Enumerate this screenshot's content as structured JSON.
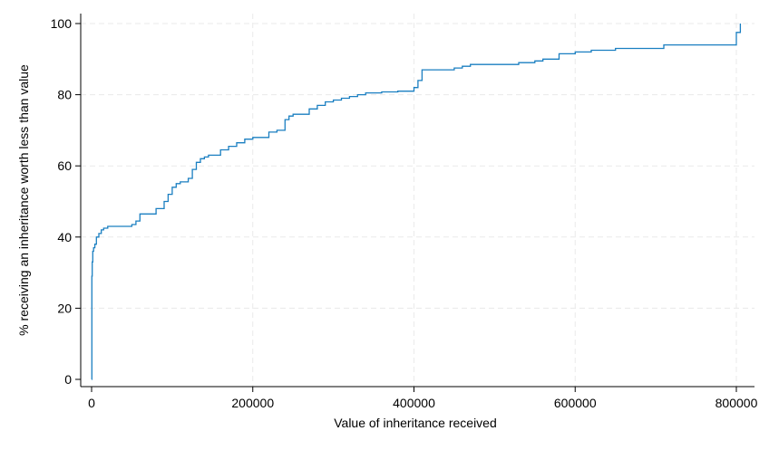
{
  "chart_data": {
    "type": "line",
    "step": true,
    "title": "",
    "xlabel": "Value of inheritance received",
    "ylabel": "% receiving an inheritance worth less than value",
    "xlim": [
      0,
      800000
    ],
    "ylim": [
      0,
      100
    ],
    "x_ticks": [
      0,
      200000,
      400000,
      600000,
      800000
    ],
    "x_tick_labels": [
      "0",
      "200000",
      "400000",
      "600000",
      "800000"
    ],
    "y_ticks": [
      0,
      20,
      40,
      60,
      80,
      100
    ],
    "y_tick_labels": [
      "0",
      "20",
      "40",
      "60",
      "80",
      "100"
    ],
    "grid": true,
    "legend": "none",
    "colors": {
      "series": "#1a7fc1",
      "grid": "#eaeaea",
      "axis": "#000000"
    },
    "series": [
      {
        "x": [
          0,
          300,
          800,
          1500,
          2500,
          4000,
          6000,
          9000,
          12000,
          15000,
          20000,
          50000,
          55000,
          60000,
          80000,
          90000,
          95000,
          100000,
          105000,
          110000,
          120000,
          125000,
          130000,
          135000,
          140000,
          145000,
          160000,
          170000,
          180000,
          190000,
          200000,
          220000,
          230000,
          240000,
          245000,
          250000,
          270000,
          280000,
          290000,
          300000,
          310000,
          320000,
          330000,
          340000,
          360000,
          380000,
          400000,
          405000,
          410000,
          450000,
          460000,
          470000,
          500000,
          530000,
          550000,
          560000,
          580000,
          600000,
          620000,
          650000,
          700000,
          710000,
          780000,
          800000,
          805000
        ],
        "y": [
          0,
          29,
          33,
          36,
          37,
          38,
          40,
          41,
          42,
          42.5,
          43,
          43.5,
          44.5,
          46.5,
          48,
          50,
          52,
          54,
          55,
          55.5,
          56.5,
          59,
          61,
          62,
          62.5,
          63,
          64.5,
          65.5,
          66.5,
          67.5,
          68,
          69.5,
          70,
          73,
          74,
          74.5,
          76,
          77,
          78,
          78.5,
          79,
          79.5,
          80,
          80.5,
          80.8,
          81,
          82,
          84,
          87,
          87.5,
          88,
          88.5,
          88.5,
          89,
          89.5,
          90,
          91.5,
          92,
          92.5,
          93,
          93,
          94,
          94,
          97.5,
          100
        ]
      }
    ]
  }
}
